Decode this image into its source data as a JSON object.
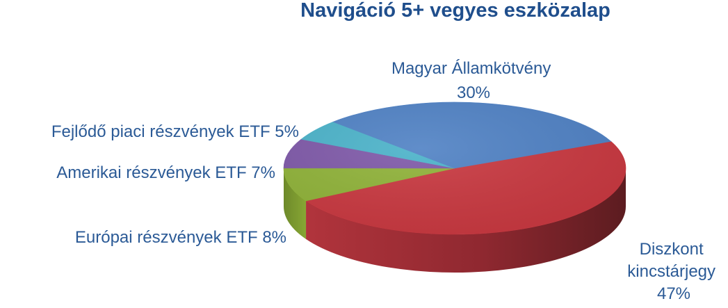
{
  "chart_data": {
    "type": "pie",
    "title": "Navigáció 5+ vegyes eszközalap",
    "slices": [
      {
        "label": "Magyar Államkötvény",
        "value": 30,
        "value_label": "30%",
        "color": "#4f81c4"
      },
      {
        "label": "Diszkont kincstárjegy",
        "value": 47,
        "value_label": "47%",
        "color": "#c8373f"
      },
      {
        "label": "Európai részvények ETF",
        "value": 8,
        "value_label": "8%",
        "color": "#8fb238"
      },
      {
        "label": "Amerikai részvények ETF",
        "value": 7,
        "value_label": "7%",
        "color": "#7e58a8"
      },
      {
        "label": "Fejlődő piaci részvények ETF",
        "value": 5,
        "value_label": "5%",
        "color": "#4ab2c9"
      }
    ],
    "label_texts": {
      "magyar_line1": "Magyar Államkötvény",
      "magyar_line2": "30%",
      "diszkont_line1": "Diszkont",
      "diszkont_line2": "kincstárjegy",
      "diszkont_line3": "47%",
      "europai": "Európai részvények ETF 8%",
      "amerikai": "Amerikai részvények ETF 7%",
      "fejlodo": "Fejlődő piaci részvények ETF 5%"
    },
    "style": "3d-pie"
  }
}
